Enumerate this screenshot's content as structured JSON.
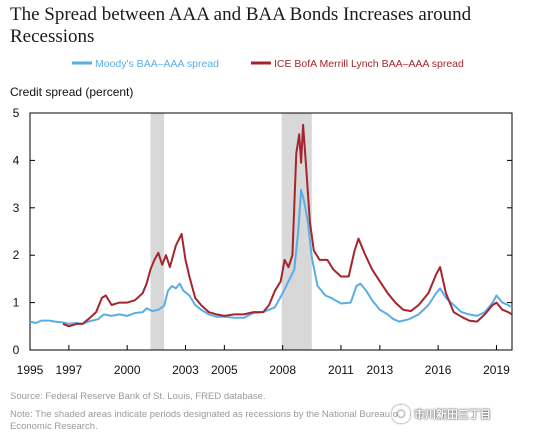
{
  "title": "The Spread between AAA and BAA Bonds Increases around Recessions",
  "source": "Source: Federal Reserve Bank of St. Louis, FRED database.",
  "note": "Note: The shaded areas indicate periods designated as recessions by the National Bureau of Economic Research.",
  "watermark": "市川新田三丁目",
  "colors": {
    "moodys": "#5aaee6",
    "ice": "#a3262f",
    "recession": "#d8d8d8",
    "axis": "#000000"
  },
  "chart_data": {
    "type": "line",
    "ylabel": "Credit spread (percent)",
    "xlim": [
      1995,
      2019.8
    ],
    "ylim": [
      0,
      5
    ],
    "x_ticks": [
      1995,
      1997,
      2000,
      2003,
      2005,
      2008,
      2011,
      2013,
      2016,
      2019
    ],
    "x_tick_labels": [
      "1995",
      "1997",
      "2000",
      "2003",
      "2005",
      "2008",
      "2011",
      "2013",
      "2016",
      "2019"
    ],
    "y_ticks": [
      0,
      1,
      2,
      3,
      4,
      5
    ],
    "y_tick_labels": [
      "0",
      "1",
      "2",
      "3",
      "4",
      "5"
    ],
    "legend_position": "top",
    "recessions": [
      [
        2001.2,
        2001.9
      ],
      [
        2007.95,
        2009.5
      ]
    ],
    "series": [
      {
        "name": "Moody's BAA–AAA spread",
        "color_key": "moodys",
        "points": [
          [
            1995.0,
            0.6
          ],
          [
            1995.3,
            0.57
          ],
          [
            1995.6,
            0.62
          ],
          [
            1996.0,
            0.62
          ],
          [
            1996.3,
            0.6
          ],
          [
            1996.7,
            0.58
          ],
          [
            1997.0,
            0.55
          ],
          [
            1997.4,
            0.57
          ],
          [
            1997.7,
            0.55
          ],
          [
            1998.0,
            0.6
          ],
          [
            1998.5,
            0.65
          ],
          [
            1998.8,
            0.75
          ],
          [
            1999.2,
            0.72
          ],
          [
            1999.6,
            0.75
          ],
          [
            2000.0,
            0.72
          ],
          [
            2000.4,
            0.78
          ],
          [
            2000.8,
            0.8
          ],
          [
            2001.0,
            0.88
          ],
          [
            2001.3,
            0.82
          ],
          [
            2001.6,
            0.85
          ],
          [
            2001.9,
            0.93
          ],
          [
            2002.1,
            1.25
          ],
          [
            2002.3,
            1.35
          ],
          [
            2002.5,
            1.3
          ],
          [
            2002.7,
            1.4
          ],
          [
            2002.9,
            1.25
          ],
          [
            2003.2,
            1.15
          ],
          [
            2003.5,
            0.95
          ],
          [
            2003.8,
            0.85
          ],
          [
            2004.2,
            0.75
          ],
          [
            2004.6,
            0.7
          ],
          [
            2005.0,
            0.7
          ],
          [
            2005.5,
            0.68
          ],
          [
            2006.0,
            0.68
          ],
          [
            2006.5,
            0.78
          ],
          [
            2007.0,
            0.8
          ],
          [
            2007.3,
            0.85
          ],
          [
            2007.6,
            0.9
          ],
          [
            2008.0,
            1.2
          ],
          [
            2008.3,
            1.45
          ],
          [
            2008.6,
            1.7
          ],
          [
            2008.8,
            2.5
          ],
          [
            2008.95,
            3.38
          ],
          [
            2009.1,
            3.15
          ],
          [
            2009.3,
            2.7
          ],
          [
            2009.5,
            1.95
          ],
          [
            2009.8,
            1.35
          ],
          [
            2010.2,
            1.15
          ],
          [
            2010.5,
            1.1
          ],
          [
            2011.0,
            0.98
          ],
          [
            2011.5,
            1.0
          ],
          [
            2011.8,
            1.35
          ],
          [
            2012.0,
            1.4
          ],
          [
            2012.3,
            1.25
          ],
          [
            2012.6,
            1.05
          ],
          [
            2013.0,
            0.85
          ],
          [
            2013.4,
            0.75
          ],
          [
            2013.7,
            0.65
          ],
          [
            2014.0,
            0.6
          ],
          [
            2014.5,
            0.65
          ],
          [
            2015.0,
            0.75
          ],
          [
            2015.5,
            0.95
          ],
          [
            2015.9,
            1.2
          ],
          [
            2016.1,
            1.3
          ],
          [
            2016.4,
            1.1
          ],
          [
            2016.8,
            0.95
          ],
          [
            2017.2,
            0.8
          ],
          [
            2017.6,
            0.75
          ],
          [
            2018.0,
            0.72
          ],
          [
            2018.4,
            0.8
          ],
          [
            2018.8,
            1.0
          ],
          [
            2019.0,
            1.15
          ],
          [
            2019.3,
            1.0
          ],
          [
            2019.6,
            0.95
          ],
          [
            2019.8,
            0.9
          ]
        ]
      },
      {
        "name": "ICE BofA Merrill Lynch BAA–AAA spread",
        "color_key": "ice",
        "points": [
          [
            1996.7,
            0.55
          ],
          [
            1997.0,
            0.5
          ],
          [
            1997.4,
            0.55
          ],
          [
            1997.7,
            0.55
          ],
          [
            1998.0,
            0.65
          ],
          [
            1998.4,
            0.8
          ],
          [
            1998.7,
            1.1
          ],
          [
            1998.9,
            1.15
          ],
          [
            1999.2,
            0.95
          ],
          [
            1999.6,
            1.0
          ],
          [
            2000.0,
            1.0
          ],
          [
            2000.4,
            1.05
          ],
          [
            2000.8,
            1.2
          ],
          [
            2001.0,
            1.4
          ],
          [
            2001.2,
            1.7
          ],
          [
            2001.4,
            1.9
          ],
          [
            2001.6,
            2.05
          ],
          [
            2001.8,
            1.8
          ],
          [
            2002.0,
            2.0
          ],
          [
            2002.2,
            1.75
          ],
          [
            2002.5,
            2.2
          ],
          [
            2002.8,
            2.45
          ],
          [
            2003.0,
            1.9
          ],
          [
            2003.2,
            1.55
          ],
          [
            2003.5,
            1.1
          ],
          [
            2003.8,
            0.95
          ],
          [
            2004.2,
            0.8
          ],
          [
            2004.6,
            0.75
          ],
          [
            2005.0,
            0.72
          ],
          [
            2005.5,
            0.75
          ],
          [
            2006.0,
            0.75
          ],
          [
            2006.5,
            0.8
          ],
          [
            2007.0,
            0.8
          ],
          [
            2007.3,
            0.95
          ],
          [
            2007.6,
            1.25
          ],
          [
            2007.9,
            1.45
          ],
          [
            2008.1,
            1.9
          ],
          [
            2008.3,
            1.75
          ],
          [
            2008.5,
            2.0
          ],
          [
            2008.7,
            4.15
          ],
          [
            2008.85,
            4.55
          ],
          [
            2008.95,
            3.95
          ],
          [
            2009.05,
            4.75
          ],
          [
            2009.2,
            3.9
          ],
          [
            2009.4,
            2.7
          ],
          [
            2009.6,
            2.1
          ],
          [
            2009.9,
            1.9
          ],
          [
            2010.3,
            1.9
          ],
          [
            2010.6,
            1.7
          ],
          [
            2011.0,
            1.55
          ],
          [
            2011.4,
            1.55
          ],
          [
            2011.7,
            2.1
          ],
          [
            2011.9,
            2.35
          ],
          [
            2012.2,
            2.05
          ],
          [
            2012.6,
            1.7
          ],
          [
            2013.0,
            1.45
          ],
          [
            2013.4,
            1.2
          ],
          [
            2013.8,
            1.0
          ],
          [
            2014.2,
            0.85
          ],
          [
            2014.6,
            0.82
          ],
          [
            2015.0,
            0.95
          ],
          [
            2015.5,
            1.2
          ],
          [
            2015.9,
            1.6
          ],
          [
            2016.1,
            1.75
          ],
          [
            2016.4,
            1.2
          ],
          [
            2016.8,
            0.8
          ],
          [
            2017.2,
            0.7
          ],
          [
            2017.6,
            0.62
          ],
          [
            2018.0,
            0.6
          ],
          [
            2018.4,
            0.75
          ],
          [
            2018.8,
            0.95
          ],
          [
            2019.0,
            1.0
          ],
          [
            2019.3,
            0.85
          ],
          [
            2019.6,
            0.8
          ],
          [
            2019.8,
            0.75
          ]
        ]
      }
    ]
  }
}
